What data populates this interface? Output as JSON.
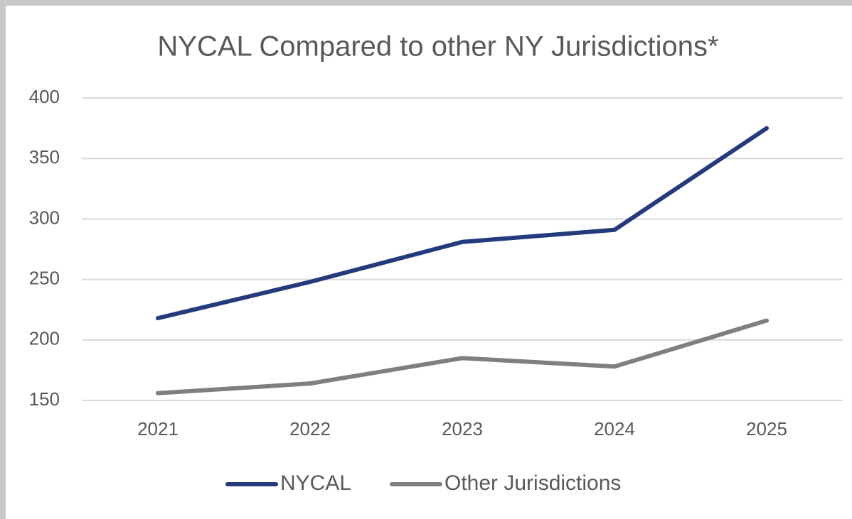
{
  "chart_data": {
    "type": "line",
    "title": "NYCAL Compared to other NY Jurisdictions*",
    "categories": [
      "2021",
      "2022",
      "2023",
      "2024",
      "2025"
    ],
    "series": [
      {
        "name": "NYCAL",
        "color": "#253a7d",
        "values": [
          218,
          248,
          281,
          291,
          375
        ]
      },
      {
        "name": "Other Jurisdictions",
        "color": "#7f7f7f",
        "values": [
          156,
          164,
          185,
          178,
          216
        ]
      }
    ],
    "ylim": [
      150,
      400
    ],
    "yticks": [
      150,
      200,
      250,
      300,
      350,
      400
    ],
    "grid": true,
    "legend": "bottom"
  }
}
